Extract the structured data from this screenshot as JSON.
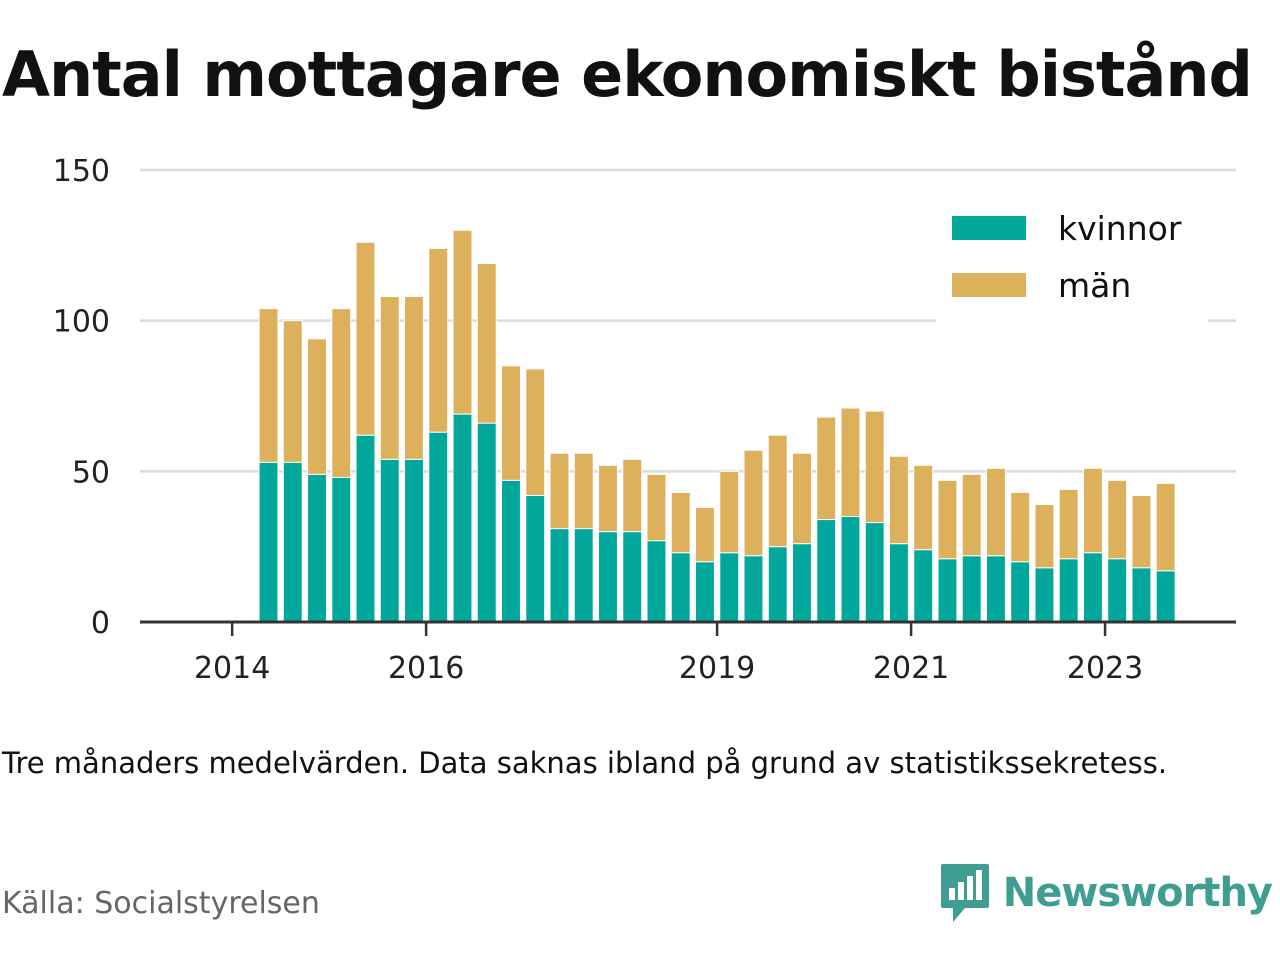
{
  "title": "Antal mottagare ekonomiskt bistånd",
  "note": "Tre månaders medelvärden. Data saknas ibland på grund av statistikssekretess.",
  "source": "Källa: Socialstyrelsen",
  "brand": {
    "name": "Newsworthy",
    "logo_icon": "newsworthy-logo-icon",
    "color": "#3f9e91"
  },
  "chart_data": {
    "type": "bar",
    "stacked": true,
    "title": "Antal mottagare ekonomiskt bistånd",
    "xlabel": "",
    "ylabel": "",
    "ylim": [
      0,
      150
    ],
    "yticks": [
      0,
      50,
      100,
      150
    ],
    "grid": true,
    "legend": "top-right",
    "xticks": [
      {
        "label": "2014",
        "x": 2014.0
      },
      {
        "label": "2016",
        "x": 2016.0
      },
      {
        "label": "2019",
        "x": 2019.0
      },
      {
        "label": "2021",
        "x": 2021.0
      },
      {
        "label": "2023",
        "x": 2023.0
      }
    ],
    "x": [
      2014.375,
      2014.625,
      2014.875,
      2015.125,
      2015.375,
      2015.625,
      2015.875,
      2016.125,
      2016.375,
      2016.625,
      2016.875,
      2017.125,
      2017.375,
      2017.625,
      2017.875,
      2018.125,
      2018.375,
      2018.625,
      2018.875,
      2019.125,
      2019.375,
      2019.625,
      2019.875,
      2020.125,
      2020.375,
      2020.625,
      2020.875,
      2021.125,
      2021.375,
      2021.625,
      2021.875,
      2022.125,
      2022.375,
      2022.625,
      2022.875,
      2023.125,
      2023.375,
      2023.625
    ],
    "series": [
      {
        "name": "kvinnor",
        "color": "#00a79a",
        "values": [
          53,
          53,
          49,
          48,
          62,
          54,
          54,
          63,
          69,
          66,
          47,
          42,
          31,
          31,
          30,
          30,
          27,
          23,
          20,
          23,
          22,
          25,
          26,
          34,
          35,
          33,
          26,
          24,
          21,
          22,
          22,
          20,
          18,
          21,
          23,
          21,
          18,
          17
        ]
      },
      {
        "name": "män",
        "color": "#ddb05c",
        "values": [
          51,
          47,
          45,
          56,
          64,
          54,
          54,
          61,
          61,
          53,
          38,
          42,
          25,
          25,
          22,
          24,
          22,
          20,
          18,
          27,
          35,
          37,
          30,
          34,
          36,
          37,
          29,
          28,
          26,
          27,
          29,
          23,
          21,
          23,
          28,
          26,
          24,
          29
        ]
      }
    ]
  }
}
